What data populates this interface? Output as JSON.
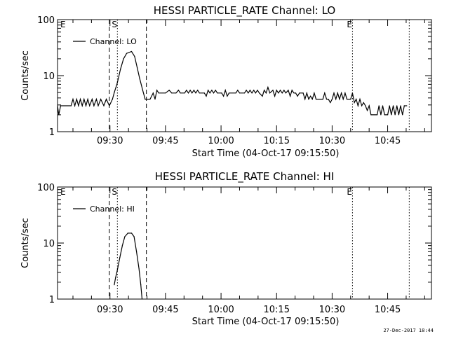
{
  "footer": {
    "timestamp": "27-Dec-2017 18:44"
  },
  "chart_data": [
    {
      "type": "line",
      "title": "HESSI PARTICLE_RATE Channel: LO",
      "xlabel": "Start Time (04-Oct-17 09:15:50)",
      "ylabel": "Counts/sec",
      "yscale": "log",
      "ylim": [
        1,
        100
      ],
      "yticks": [
        "1",
        "10",
        "100"
      ],
      "xlim": [
        "09:15:50",
        "10:56:50"
      ],
      "xticks": [
        "09:30",
        "09:45",
        "10:00",
        "10:15",
        "10:30",
        "10:45"
      ],
      "legend": {
        "location": "top-left",
        "entries": [
          "Channel: LO"
        ]
      },
      "markers": [
        {
          "label": "S",
          "time": "09:32:00",
          "style": "dotted"
        },
        {
          "label": "E",
          "time": "10:35:30",
          "style": "dotted"
        },
        {
          "label": "E",
          "time": "09:15:50",
          "style": "dotted"
        },
        {
          "label": "",
          "time": "10:50:50",
          "style": "dotted"
        },
        {
          "label": "",
          "time": "09:29:50",
          "style": "dashed"
        },
        {
          "label": "",
          "time": "09:39:50",
          "style": "dashed"
        }
      ],
      "series": [
        {
          "name": "Channel: LO",
          "points": [
            [
              "09:15:50",
              2.9
            ],
            [
              "09:16:10",
              2.0
            ],
            [
              "09:16:40",
              2.9
            ],
            [
              "09:19:30",
              2.9
            ],
            [
              "09:20:00",
              3.8
            ],
            [
              "09:20:30",
              2.9
            ],
            [
              "09:21:00",
              3.8
            ],
            [
              "09:21:30",
              2.9
            ],
            [
              "09:22:00",
              3.8
            ],
            [
              "09:22:30",
              2.9
            ],
            [
              "09:23:00",
              3.8
            ],
            [
              "09:23:30",
              2.9
            ],
            [
              "09:24:00",
              3.8
            ],
            [
              "09:24:30",
              2.9
            ],
            [
              "09:25:10",
              3.8
            ],
            [
              "09:25:40",
              2.9
            ],
            [
              "09:26:20",
              3.8
            ],
            [
              "09:26:50",
              2.9
            ],
            [
              "09:27:30",
              3.8
            ],
            [
              "09:28:20",
              2.9
            ],
            [
              "09:29:00",
              3.8
            ],
            [
              "09:29:50",
              2.9
            ],
            [
              "09:30:40",
              3.8
            ],
            [
              "09:31:10",
              5.0
            ],
            [
              "09:32:00",
              7.5
            ],
            [
              "09:32:50",
              13.0
            ],
            [
              "09:33:40",
              20.0
            ],
            [
              "09:34:30",
              25.0
            ],
            [
              "09:35:50",
              27.0
            ],
            [
              "09:36:40",
              22.0
            ],
            [
              "09:37:20",
              14.0
            ],
            [
              "09:38:00",
              9.0
            ],
            [
              "09:38:50",
              5.5
            ],
            [
              "09:39:30",
              3.8
            ],
            [
              "09:40:50",
              3.8
            ],
            [
              "09:41:40",
              4.9
            ],
            [
              "09:42:10",
              3.8
            ],
            [
              "09:42:40",
              5.5
            ],
            [
              "09:43:10",
              4.9
            ],
            [
              "09:45:00",
              4.9
            ],
            [
              "09:46:00",
              5.5
            ],
            [
              "09:46:40",
              4.9
            ],
            [
              "09:47:50",
              4.9
            ],
            [
              "09:48:30",
              5.5
            ],
            [
              "09:49:00",
              4.9
            ],
            [
              "09:50:10",
              4.9
            ],
            [
              "09:50:40",
              5.5
            ],
            [
              "09:51:10",
              4.9
            ],
            [
              "09:51:40",
              5.5
            ],
            [
              "09:52:10",
              4.9
            ],
            [
              "09:52:40",
              5.5
            ],
            [
              "09:53:10",
              4.9
            ],
            [
              "09:53:40",
              5.5
            ],
            [
              "09:54:10",
              4.9
            ],
            [
              "09:55:30",
              4.9
            ],
            [
              "09:56:00",
              4.3
            ],
            [
              "09:56:30",
              5.5
            ],
            [
              "09:57:00",
              4.9
            ],
            [
              "09:57:30",
              5.5
            ],
            [
              "09:58:00",
              4.9
            ],
            [
              "09:58:30",
              5.5
            ],
            [
              "09:59:00",
              4.9
            ],
            [
              "10:00:10",
              4.9
            ],
            [
              "10:00:40",
              4.3
            ],
            [
              "10:01:10",
              5.5
            ],
            [
              "10:01:40",
              4.3
            ],
            [
              "10:02:10",
              4.9
            ],
            [
              "10:04:00",
              4.9
            ],
            [
              "10:04:30",
              5.5
            ],
            [
              "10:05:00",
              4.9
            ],
            [
              "10:06:20",
              4.9
            ],
            [
              "10:06:50",
              5.5
            ],
            [
              "10:07:20",
              4.9
            ],
            [
              "10:07:50",
              5.5
            ],
            [
              "10:08:20",
              4.9
            ],
            [
              "10:08:50",
              5.5
            ],
            [
              "10:09:20",
              4.9
            ],
            [
              "10:09:50",
              5.5
            ],
            [
              "10:10:20",
              4.9
            ],
            [
              "10:11:10",
              4.3
            ],
            [
              "10:11:40",
              5.5
            ],
            [
              "10:12:10",
              4.9
            ],
            [
              "10:12:40",
              6.2
            ],
            [
              "10:13:10",
              4.9
            ],
            [
              "10:14:00",
              5.5
            ],
            [
              "10:14:30",
              4.3
            ],
            [
              "10:15:00",
              5.5
            ],
            [
              "10:15:30",
              4.9
            ],
            [
              "10:16:00",
              5.5
            ],
            [
              "10:16:30",
              4.9
            ],
            [
              "10:17:00",
              5.5
            ],
            [
              "10:17:30",
              4.9
            ],
            [
              "10:18:10",
              5.5
            ],
            [
              "10:18:40",
              4.3
            ],
            [
              "10:19:10",
              5.5
            ],
            [
              "10:19:40",
              4.9
            ],
            [
              "10:20:10",
              4.9
            ],
            [
              "10:20:40",
              4.3
            ],
            [
              "10:21:10",
              4.9
            ],
            [
              "10:22:10",
              4.9
            ],
            [
              "10:22:40",
              3.8
            ],
            [
              "10:23:10",
              4.9
            ],
            [
              "10:23:40",
              3.8
            ],
            [
              "10:24:10",
              4.3
            ],
            [
              "10:24:40",
              3.8
            ],
            [
              "10:25:10",
              4.9
            ],
            [
              "10:25:40",
              3.8
            ],
            [
              "10:27:30",
              3.8
            ],
            [
              "10:28:00",
              4.9
            ],
            [
              "10:28:30",
              3.8
            ],
            [
              "10:29:00",
              3.8
            ],
            [
              "10:29:30",
              3.3
            ],
            [
              "10:30:00",
              3.8
            ],
            [
              "10:30:30",
              4.9
            ],
            [
              "10:31:00",
              3.8
            ],
            [
              "10:31:30",
              4.9
            ],
            [
              "10:32:00",
              3.8
            ],
            [
              "10:32:30",
              4.9
            ],
            [
              "10:33:00",
              3.8
            ],
            [
              "10:33:30",
              4.9
            ],
            [
              "10:34:00",
              3.8
            ],
            [
              "10:35:00",
              3.8
            ],
            [
              "10:35:30",
              4.9
            ],
            [
              "10:36:00",
              3.3
            ],
            [
              "10:36:30",
              3.8
            ],
            [
              "10:37:00",
              2.9
            ],
            [
              "10:37:30",
              3.8
            ],
            [
              "10:38:00",
              2.9
            ],
            [
              "10:38:30",
              3.3
            ],
            [
              "10:39:00",
              2.9
            ],
            [
              "10:39:30",
              2.4
            ],
            [
              "10:40:00",
              2.9
            ],
            [
              "10:40:30",
              2.0
            ],
            [
              "10:42:10",
              2.0
            ],
            [
              "10:42:40",
              2.9
            ],
            [
              "10:43:10",
              2.0
            ],
            [
              "10:43:40",
              2.9
            ],
            [
              "10:44:10",
              2.0
            ],
            [
              "10:45:00",
              2.0
            ],
            [
              "10:45:30",
              2.9
            ],
            [
              "10:46:00",
              2.0
            ],
            [
              "10:46:30",
              2.9
            ],
            [
              "10:47:00",
              2.0
            ],
            [
              "10:47:30",
              2.9
            ],
            [
              "10:48:00",
              2.0
            ],
            [
              "10:48:30",
              2.9
            ],
            [
              "10:49:00",
              2.0
            ],
            [
              "10:49:30",
              2.9
            ],
            [
              "10:50:10",
              2.9
            ]
          ]
        }
      ]
    },
    {
      "type": "line",
      "title": "HESSI PARTICLE_RATE Channel: HI",
      "xlabel": "Start Time (04-Oct-17 09:15:50)",
      "ylabel": "Counts/sec",
      "yscale": "log",
      "ylim": [
        1,
        100
      ],
      "yticks": [
        "1",
        "10",
        "100"
      ],
      "xlim": [
        "09:15:50",
        "10:56:50"
      ],
      "xticks": [
        "09:30",
        "09:45",
        "10:00",
        "10:15",
        "10:30",
        "10:45"
      ],
      "legend": {
        "location": "top-left",
        "entries": [
          "Channel: HI"
        ]
      },
      "markers": [
        {
          "label": "S",
          "time": "09:32:00",
          "style": "dotted"
        },
        {
          "label": "E",
          "time": "10:35:30",
          "style": "dotted"
        },
        {
          "label": "E",
          "time": "09:15:50",
          "style": "dotted"
        },
        {
          "label": "",
          "time": "10:50:50",
          "style": "dotted"
        },
        {
          "label": "",
          "time": "09:29:50",
          "style": "dashed"
        },
        {
          "label": "",
          "time": "09:39:50",
          "style": "dashed"
        }
      ],
      "series": [
        {
          "name": "Channel: HI",
          "points": [
            [
              "09:31:10",
              1.8
            ],
            [
              "09:31:30",
              2.4
            ],
            [
              "09:32:00",
              3.3
            ],
            [
              "09:32:40",
              5.5
            ],
            [
              "09:33:20",
              9.0
            ],
            [
              "09:34:00",
              13.0
            ],
            [
              "09:34:50",
              15.0
            ],
            [
              "09:35:50",
              15.0
            ],
            [
              "09:36:30",
              13.0
            ],
            [
              "09:37:10",
              7.0
            ],
            [
              "09:37:50",
              3.5
            ],
            [
              "09:38:20",
              1.8
            ],
            [
              "09:38:40",
              1.0
            ]
          ]
        }
      ]
    }
  ]
}
